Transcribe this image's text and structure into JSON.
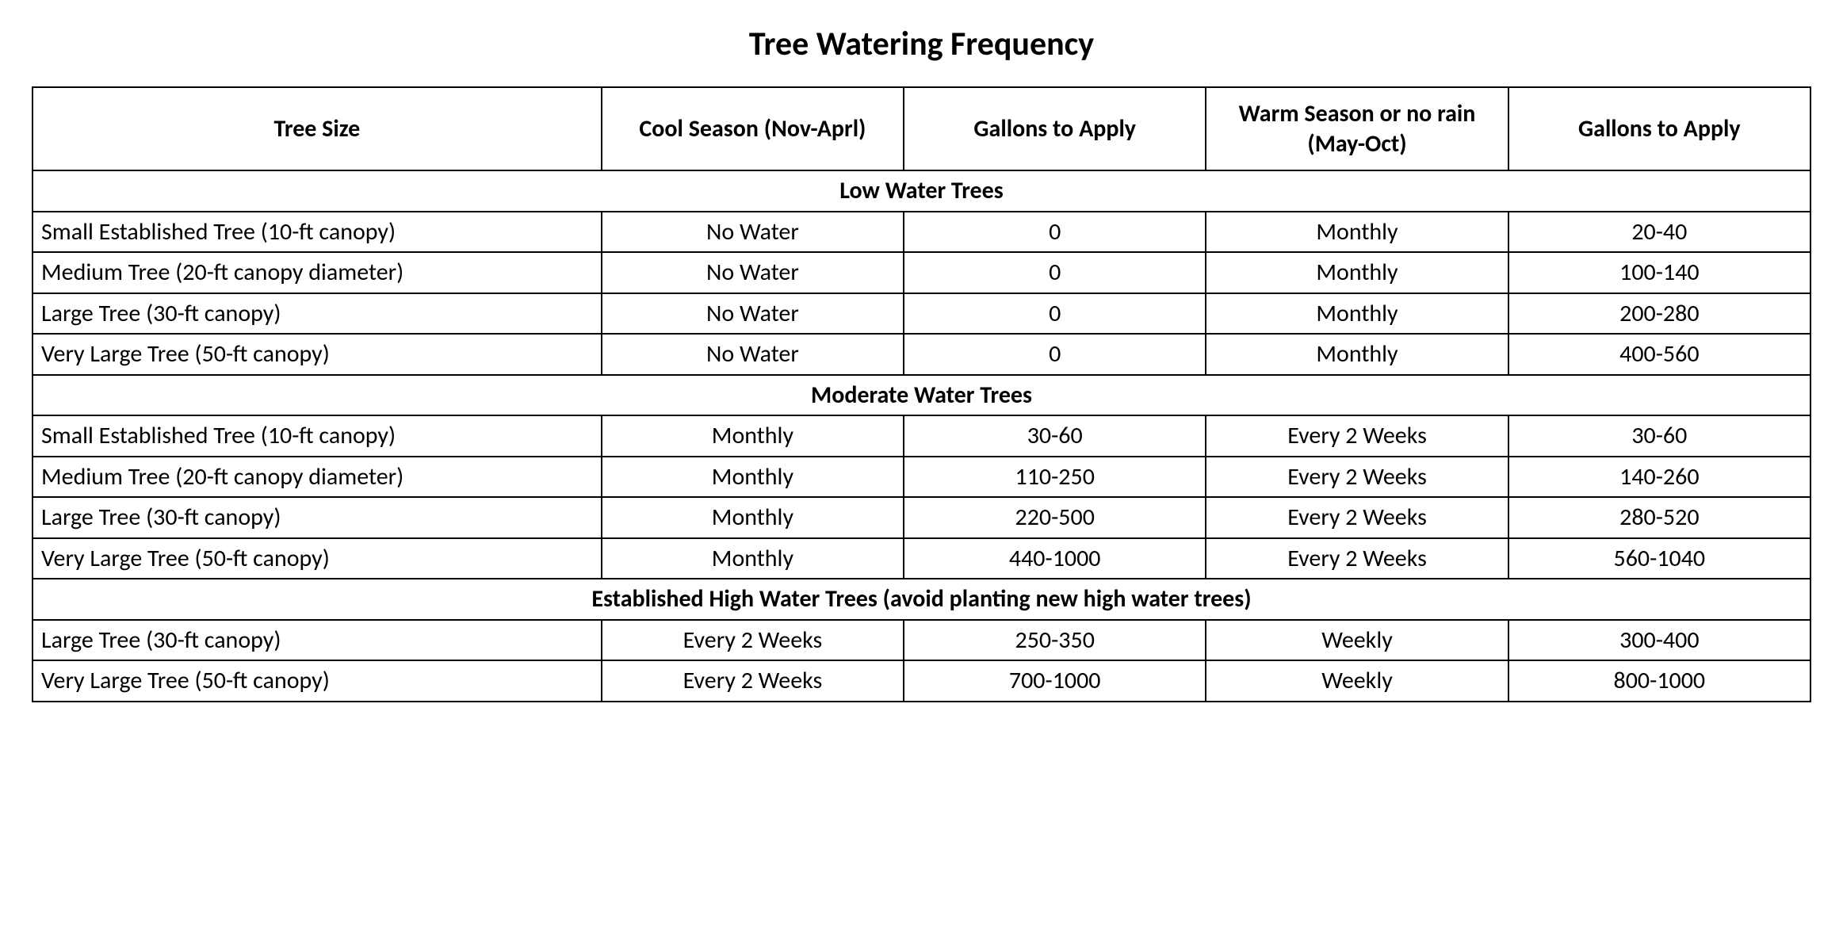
{
  "title": "Tree Watering Frequency",
  "columns": [
    "Tree Size",
    "Cool Season (Nov-Aprl)",
    "Gallons to Apply",
    "Warm Season or no rain (May-Oct)",
    "Gallons to Apply"
  ],
  "colors": {
    "background": "#ffffff",
    "text": "#000000",
    "border": "#000000"
  },
  "typography": {
    "title_fontsize_pt": 32,
    "header_fontsize_pt": 22,
    "body_fontsize_pt": 22,
    "font_family": "Calibri"
  },
  "sections": [
    {
      "label": "Low Water Trees",
      "rows": [
        {
          "size": "Small Established Tree (10-ft canopy)",
          "cool": "No Water",
          "cool_gal": "0",
          "warm": "Monthly",
          "warm_gal": "20-40"
        },
        {
          "size": "Medium Tree (20-ft canopy diameter)",
          "cool": "No Water",
          "cool_gal": "0",
          "warm": "Monthly",
          "warm_gal": "100-140"
        },
        {
          "size": "Large Tree (30-ft canopy)",
          "cool": "No Water",
          "cool_gal": "0",
          "warm": "Monthly",
          "warm_gal": "200-280"
        },
        {
          "size": "Very Large Tree (50-ft canopy)",
          "cool": "No Water",
          "cool_gal": "0",
          "warm": "Monthly",
          "warm_gal": "400-560"
        }
      ]
    },
    {
      "label": "Moderate Water Trees",
      "rows": [
        {
          "size": "Small Established Tree (10-ft canopy)",
          "cool": "Monthly",
          "cool_gal": "30-60",
          "warm": "Every 2 Weeks",
          "warm_gal": "30-60"
        },
        {
          "size": "Medium Tree (20-ft canopy diameter)",
          "cool": "Monthly",
          "cool_gal": "110-250",
          "warm": "Every 2 Weeks",
          "warm_gal": "140-260"
        },
        {
          "size": "Large Tree (30-ft canopy)",
          "cool": "Monthly",
          "cool_gal": "220-500",
          "warm": "Every 2 Weeks",
          "warm_gal": "280-520"
        },
        {
          "size": "Very Large Tree (50-ft canopy)",
          "cool": "Monthly",
          "cool_gal": "440-1000",
          "warm": "Every 2 Weeks",
          "warm_gal": "560-1040"
        }
      ]
    },
    {
      "label": "Established High Water Trees (avoid planting new high water trees)",
      "rows": [
        {
          "size": "Large Tree (30-ft canopy)",
          "cool": "Every 2 Weeks",
          "cool_gal": "250-350",
          "warm": "Weekly",
          "warm_gal": "300-400"
        },
        {
          "size": "Very Large Tree (50-ft canopy)",
          "cool": "Every 2 Weeks",
          "cool_gal": "700-1000",
          "warm": "Weekly",
          "warm_gal": "800-1000"
        }
      ]
    }
  ]
}
